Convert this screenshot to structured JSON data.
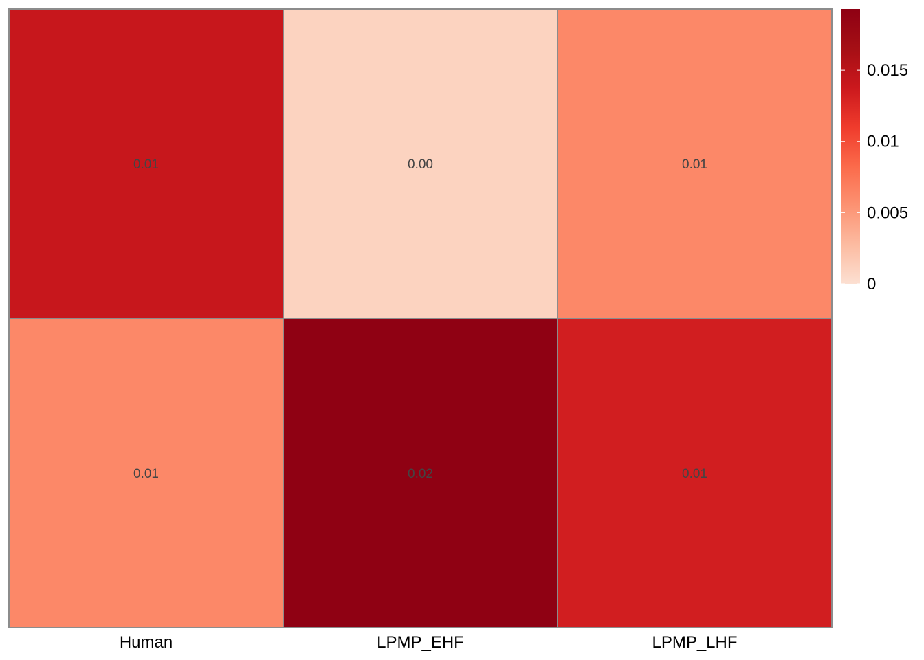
{
  "chart_data": {
    "type": "heatmap",
    "columns": [
      "Human",
      "LPMP_EHF",
      "LPMP_LHF"
    ],
    "rows": [
      "",
      ""
    ],
    "values": [
      [
        0.0141,
        0.001,
        0.0062
      ],
      [
        0.0062,
        0.0192,
        0.0133
      ]
    ],
    "cell_labels": [
      [
        "0.01",
        "0.00",
        "0.01"
      ],
      [
        "0.01",
        "0.02",
        "0.01"
      ]
    ],
    "colorbar": {
      "min": 0,
      "max": 0.0193,
      "ticks": [
        {
          "value": 0,
          "label": "0"
        },
        {
          "value": 0.005,
          "label": "0.005"
        },
        {
          "value": 0.01,
          "label": "0.01"
        },
        {
          "value": 0.015,
          "label": "0.015"
        }
      ],
      "colors": [
        "#fce0d2",
        "#fcbba1",
        "#fc9272",
        "#fb6a4a",
        "#ef3b2c",
        "#cb181d",
        "#a50f15",
        "#8e0013"
      ]
    },
    "cell_border_color": "#8c8c8c",
    "title": "",
    "xlabel": "",
    "ylabel": ""
  }
}
